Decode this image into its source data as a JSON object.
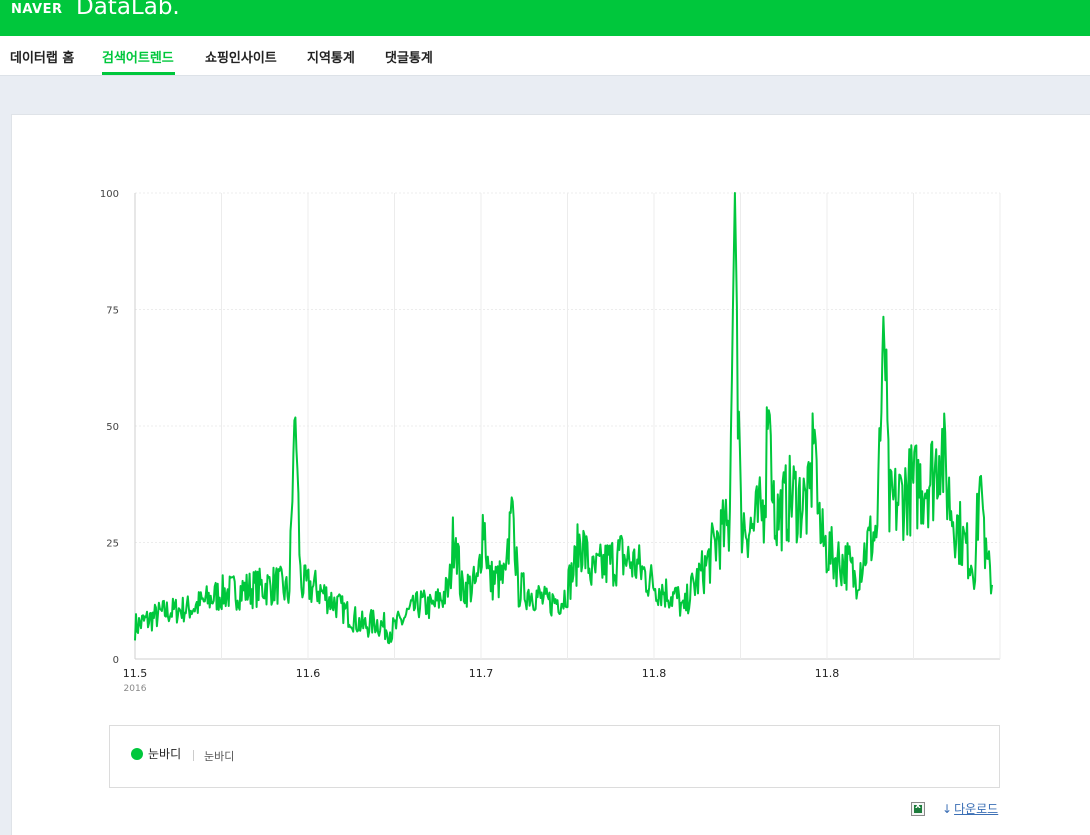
{
  "header": {
    "brand": "NAVER",
    "product": "DataLab."
  },
  "nav": {
    "items": [
      {
        "label": "데이터랩 홈"
      },
      {
        "label": "검색어트렌드"
      },
      {
        "label": "쇼핑인사이트"
      },
      {
        "label": "지역통계"
      },
      {
        "label": "댓글통계"
      }
    ],
    "active_index": 1
  },
  "chart_data": {
    "type": "line",
    "ylim": [
      0,
      100
    ],
    "yticks": [
      "0",
      "25",
      "50",
      "75",
      "100"
    ],
    "xtick_labels": [
      "11.5",
      "11.6",
      "11.7",
      "11.8",
      "11.8"
    ],
    "xtick_sublabel": "2016",
    "grid": true,
    "series": [
      {
        "name": "눈바디",
        "color": "#00c73c",
        "anchors": [
          [
            0,
            7
          ],
          [
            5,
            10
          ],
          [
            10,
            11
          ],
          [
            15,
            14
          ],
          [
            20,
            15
          ],
          [
            25,
            16
          ],
          [
            27,
            14
          ],
          [
            28,
            55
          ],
          [
            29,
            16
          ],
          [
            32,
            15
          ],
          [
            35,
            12
          ],
          [
            38,
            9
          ],
          [
            40,
            7
          ],
          [
            42,
            8
          ],
          [
            45,
            6
          ],
          [
            48,
            10
          ],
          [
            50,
            12
          ],
          [
            52,
            11
          ],
          [
            55,
            15
          ],
          [
            56,
            30
          ],
          [
            57,
            15
          ],
          [
            60,
            16
          ],
          [
            61,
            31
          ],
          [
            62,
            17
          ],
          [
            65,
            17
          ],
          [
            66,
            36
          ],
          [
            67,
            15
          ],
          [
            70,
            14
          ],
          [
            72,
            12
          ],
          [
            75,
            13
          ],
          [
            77,
            20
          ],
          [
            78,
            26
          ],
          [
            80,
            18
          ],
          [
            82,
            20
          ],
          [
            85,
            22
          ],
          [
            88,
            20
          ],
          [
            90,
            17
          ],
          [
            92,
            15
          ],
          [
            95,
            13
          ],
          [
            96,
            10
          ],
          [
            97,
            14
          ],
          [
            100,
            20
          ],
          [
            102,
            26
          ],
          [
            104,
            28
          ],
          [
            105,
            100
          ],
          [
            106,
            30
          ],
          [
            108,
            28
          ],
          [
            110,
            32
          ],
          [
            111,
            55
          ],
          [
            112,
            30
          ],
          [
            115,
            35
          ],
          [
            118,
            33
          ],
          [
            119,
            50
          ],
          [
            120,
            26
          ],
          [
            122,
            22
          ],
          [
            125,
            20
          ],
          [
            126,
            17
          ],
          [
            128,
            24
          ],
          [
            130,
            28
          ],
          [
            131,
            74
          ],
          [
            132,
            32
          ],
          [
            135,
            36
          ],
          [
            138,
            38
          ],
          [
            140,
            40
          ],
          [
            141,
            48
          ],
          [
            142,
            38
          ],
          [
            143,
            32
          ],
          [
            145,
            25
          ],
          [
            147,
            20
          ],
          [
            148,
            41
          ],
          [
            149,
            20
          ],
          [
            150,
            17
          ]
        ]
      }
    ]
  },
  "legend": {
    "name": "눈바디",
    "terms": "눈바디"
  },
  "download": {
    "icon": "excel-icon",
    "label": "다운로드",
    "arrow": "↓"
  }
}
